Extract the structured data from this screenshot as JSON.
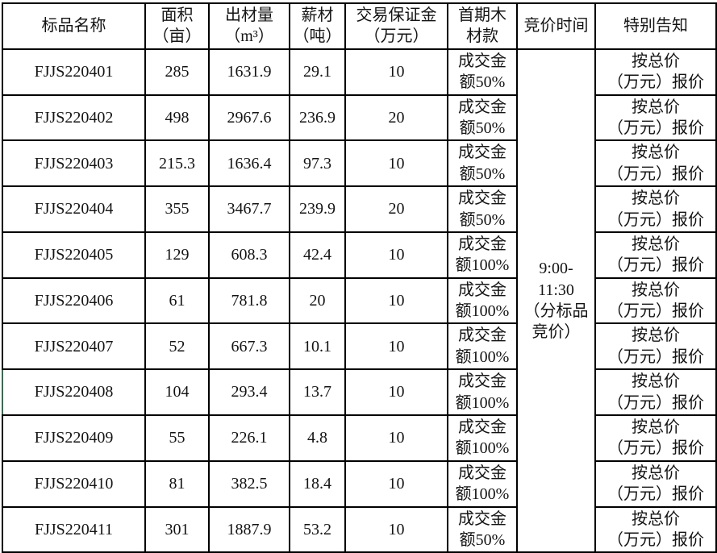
{
  "colors": {
    "border": "#000000",
    "background": "#ffffff",
    "text": "#141414",
    "row8_left_accent": "#2e7050"
  },
  "table": {
    "headers": {
      "name": "标品名称",
      "area": "面积\n（亩）",
      "volume": "出材量\n（m³）",
      "firewood": "薪材\n（吨）",
      "deposit": "交易保证金\n（万元）",
      "first_payment": "首期木\n材款",
      "bid_time": "竞价时间",
      "special_note": "特别告知"
    },
    "bid_time_value": "9:00-\n11:30\n（分标品\n竞价）",
    "special_note_value": "按总价\n（万元）报价",
    "rows": [
      {
        "name": "FJJS220401",
        "area": "285",
        "volume": "1631.9",
        "firewood": "29.1",
        "deposit": "10",
        "first_payment": "成交金\n额50%"
      },
      {
        "name": "FJJS220402",
        "area": "498",
        "volume": "2967.6",
        "firewood": "236.9",
        "deposit": "20",
        "first_payment": "成交金\n额50%"
      },
      {
        "name": "FJJS220403",
        "area": "215.3",
        "volume": "1636.4",
        "firewood": "97.3",
        "deposit": "10",
        "first_payment": "成交金\n额50%"
      },
      {
        "name": "FJJS220404",
        "area": "355",
        "volume": "3467.7",
        "firewood": "239.9",
        "deposit": "20",
        "first_payment": "成交金\n额50%"
      },
      {
        "name": "FJJS220405",
        "area": "129",
        "volume": "608.3",
        "firewood": "42.4",
        "deposit": "10",
        "first_payment": "成交金\n额100%"
      },
      {
        "name": "FJJS220406",
        "area": "61",
        "volume": "781.8",
        "firewood": "20",
        "deposit": "10",
        "first_payment": "成交金\n额100%"
      },
      {
        "name": "FJJS220407",
        "area": "52",
        "volume": "667.3",
        "firewood": "10.1",
        "deposit": "10",
        "first_payment": "成交金\n额100%"
      },
      {
        "name": "FJJS220408",
        "area": "104",
        "volume": "293.4",
        "firewood": "13.7",
        "deposit": "10",
        "first_payment": "成交金\n额100%"
      },
      {
        "name": "FJJS220409",
        "area": "55",
        "volume": "226.1",
        "firewood": "4.8",
        "deposit": "10",
        "first_payment": "成交金\n额100%"
      },
      {
        "name": "FJJS220410",
        "area": "81",
        "volume": "382.5",
        "firewood": "18.4",
        "deposit": "10",
        "first_payment": "成交金\n额100%"
      },
      {
        "name": "FJJS220411",
        "area": "301",
        "volume": "1887.9",
        "firewood": "53.2",
        "deposit": "10",
        "first_payment": "成交金\n额50%"
      }
    ]
  }
}
